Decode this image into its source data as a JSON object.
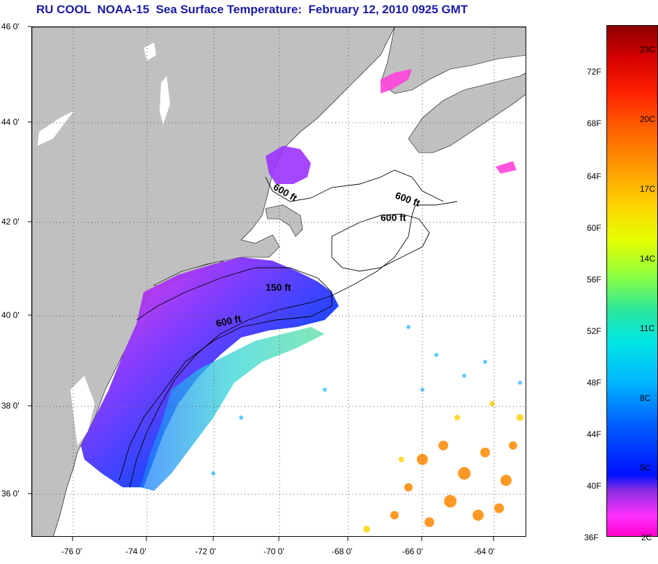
{
  "title": "RU COOL  NOAA-15  Sea Surface Temperature:  February 12, 2010 0925 GMT",
  "lat_labels": [
    "46 0'",
    "44 0'",
    "42 0'",
    "40 0'",
    "38 0'",
    "36 0'"
  ],
  "lon_labels": [
    "-76 0'",
    "-74 0'",
    "-72 0'",
    "-70 0'",
    "-68 0'",
    "-66 0'",
    "-64 0'"
  ],
  "contour_labels": [
    "600 ft",
    "600 ft",
    "600 ft",
    "150 ft",
    "600 ft"
  ],
  "colorbar": {
    "fahrenheit": [
      "72F",
      "68F",
      "64F",
      "60F",
      "56F",
      "52F",
      "48F",
      "44F",
      "40F",
      "36F"
    ],
    "celsius": [
      "23C",
      "20C",
      "17C",
      "14C",
      "11C",
      "8C",
      "5C",
      "2C"
    ]
  },
  "colors": {
    "land": "#c0c0c0",
    "title": "#1a1aa6",
    "grid": "#555555"
  }
}
